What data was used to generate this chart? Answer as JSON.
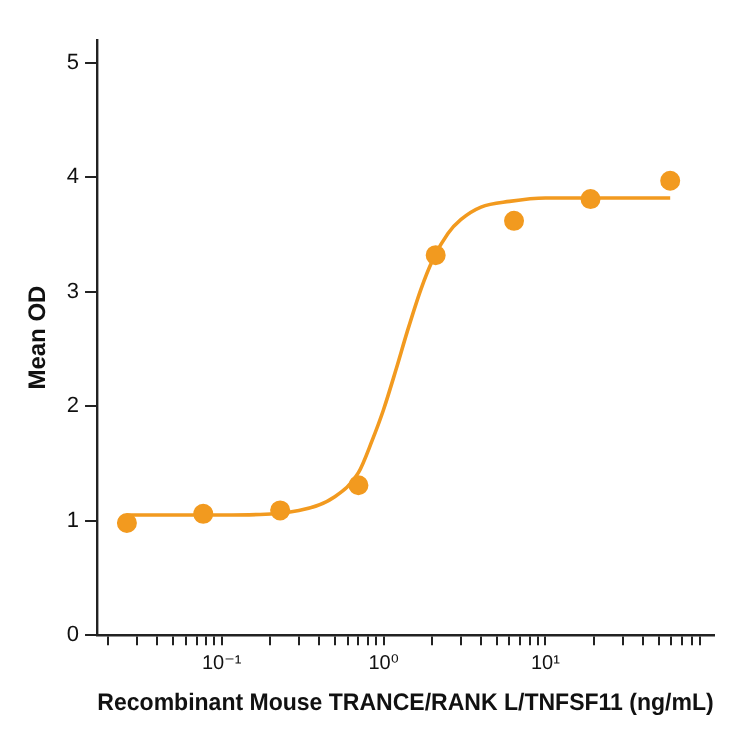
{
  "chart_data": {
    "type": "scatter",
    "xlabel": "Recombinant Mouse TRANCE/RANK L/TNFSF11 (ng/mL)",
    "ylabel": "Mean OD",
    "log": "x",
    "grid": false,
    "legend": false,
    "marker": "circle",
    "xlim": [
      0.017,
      110
    ],
    "ylim": [
      0,
      5.2
    ],
    "xticks": [
      {
        "value": 0.02,
        "label": null
      },
      {
        "value": 0.03,
        "label": null
      },
      {
        "value": 0.04,
        "label": null
      },
      {
        "value": 0.05,
        "label": null
      },
      {
        "value": 0.06,
        "label": null
      },
      {
        "value": 0.07,
        "label": null
      },
      {
        "value": 0.08,
        "label": null
      },
      {
        "value": 0.09,
        "label": null
      },
      {
        "value": 0.1,
        "label": "10⁻¹"
      },
      {
        "value": 0.2,
        "label": null
      },
      {
        "value": 0.3,
        "label": null
      },
      {
        "value": 0.4,
        "label": null
      },
      {
        "value": 0.5,
        "label": null
      },
      {
        "value": 0.6,
        "label": null
      },
      {
        "value": 0.7,
        "label": null
      },
      {
        "value": 0.8,
        "label": null
      },
      {
        "value": 0.9,
        "label": null
      },
      {
        "value": 1,
        "label": "10⁰"
      },
      {
        "value": 2,
        "label": null
      },
      {
        "value": 3,
        "label": null
      },
      {
        "value": 4,
        "label": null
      },
      {
        "value": 5,
        "label": null
      },
      {
        "value": 6,
        "label": null
      },
      {
        "value": 7,
        "label": null
      },
      {
        "value": 8,
        "label": null
      },
      {
        "value": 9,
        "label": null
      },
      {
        "value": 10,
        "label": "10¹"
      },
      {
        "value": 20,
        "label": null
      },
      {
        "value": 30,
        "label": null
      },
      {
        "value": 40,
        "label": null
      },
      {
        "value": 50,
        "label": null
      },
      {
        "value": 60,
        "label": null
      },
      {
        "value": 70,
        "label": null
      },
      {
        "value": 80,
        "label": null
      },
      {
        "value": 90,
        "label": null
      }
    ],
    "yticks": [
      0,
      1,
      2,
      3,
      4,
      5
    ],
    "series": [
      {
        "color": "#f29a1f",
        "x": [
          0.026,
          0.077,
          0.23,
          0.7,
          2.1,
          6.4,
          19,
          59
        ],
        "values": [
          0.98,
          1.06,
          1.09,
          1.31,
          3.32,
          3.62,
          3.81,
          3.97
        ]
      },
      {
        "type": "line",
        "color": "#f29a1f",
        "marker": "none",
        "line_style": "solid",
        "x": [
          0.026,
          0.1,
          0.3,
          0.5,
          0.7,
          0.85,
          1.0,
          1.2,
          1.4,
          1.7,
          2.0,
          2.5,
          3.0,
          4.0,
          6.0,
          10,
          59
        ],
        "values": [
          1.05,
          1.05,
          1.09,
          1.21,
          1.42,
          1.7,
          1.97,
          2.33,
          2.65,
          3.02,
          3.27,
          3.51,
          3.63,
          3.74,
          3.79,
          3.82,
          3.82
        ]
      }
    ]
  }
}
